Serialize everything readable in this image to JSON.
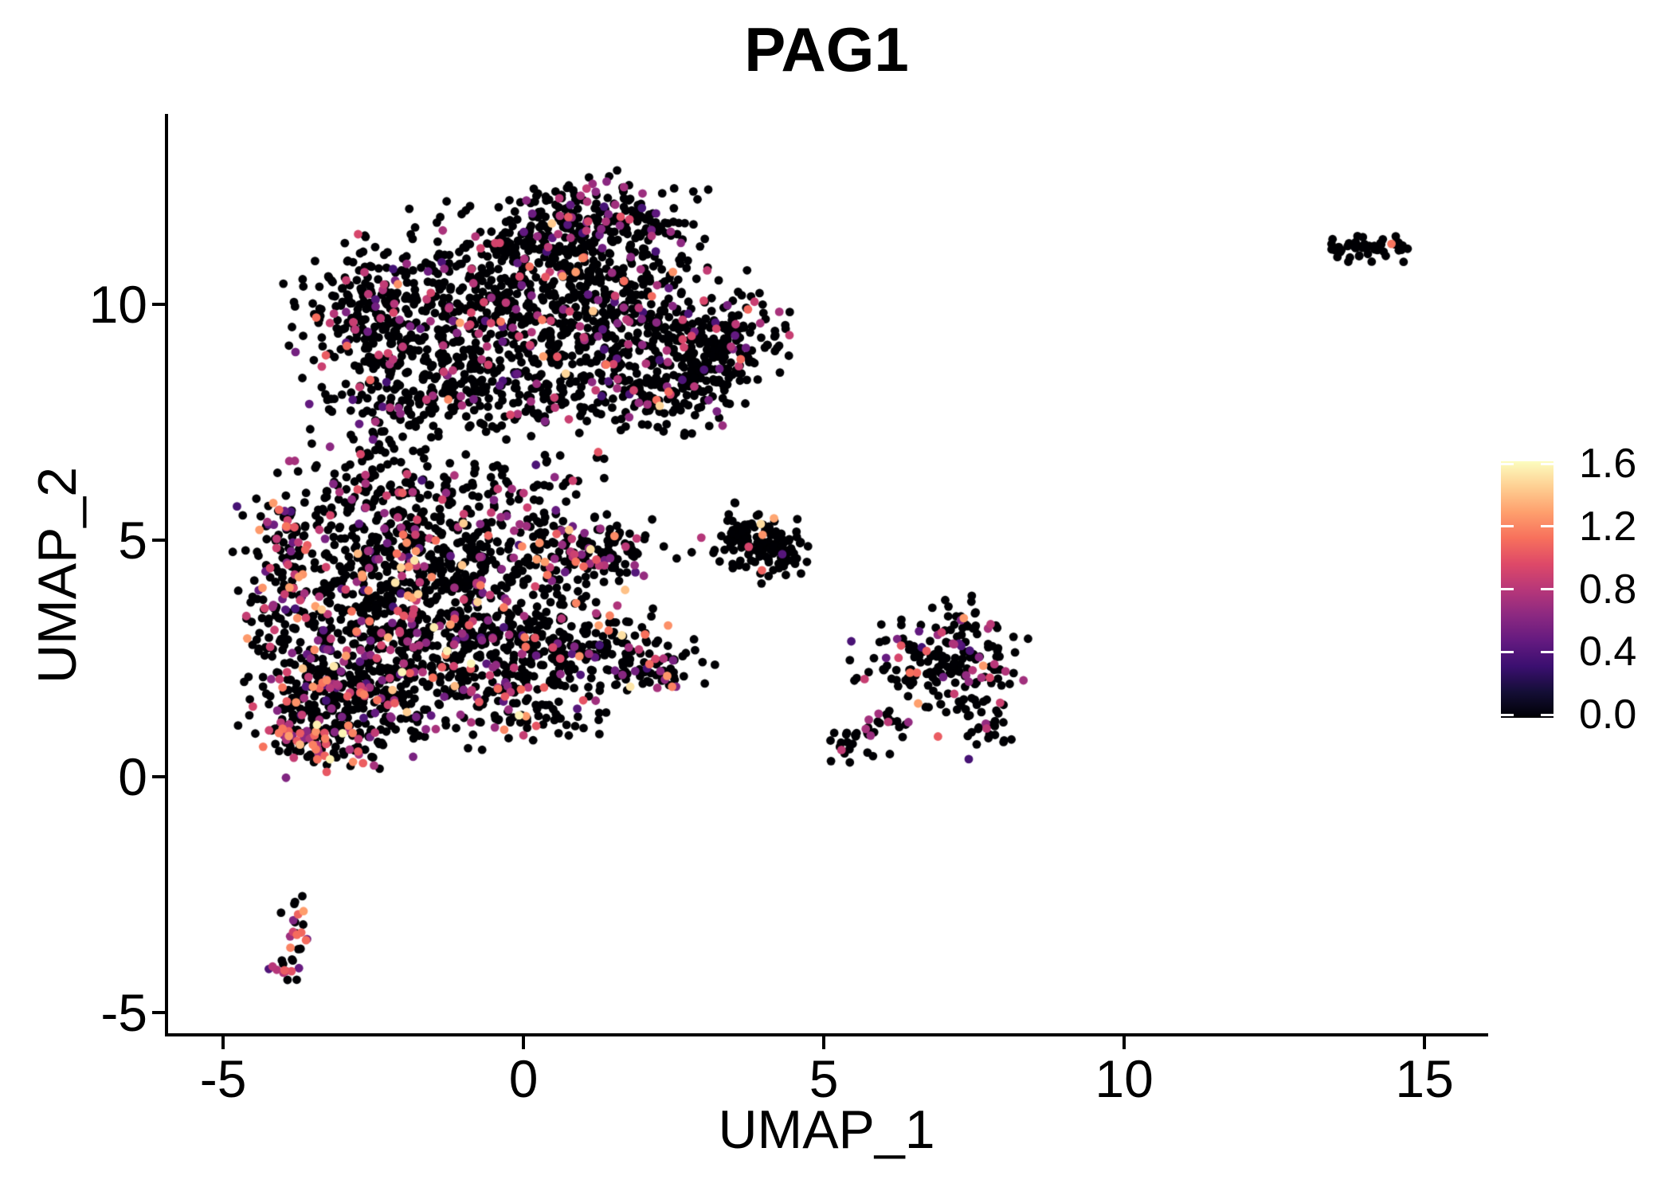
{
  "chart_data": {
    "type": "scatter",
    "title": "PAG1",
    "xlabel": "UMAP_1",
    "ylabel": "UMAP_2",
    "xlim": [
      -5.97,
      16.06
    ],
    "ylim": [
      -5.5,
      14.03
    ],
    "grid": false,
    "legend_position": "right",
    "xtick_values": [
      -5,
      0,
      5,
      10,
      15
    ],
    "xtick_labels": [
      "-5",
      "0",
      "5",
      "10",
      "15"
    ],
    "ytick_values": [
      -5,
      0,
      5,
      10
    ],
    "ytick_labels": [
      "-5",
      "0",
      "5",
      "10"
    ],
    "legend": {
      "tick_values": [
        0.0,
        0.4,
        0.8,
        1.2,
        1.6
      ],
      "tick_labels": [
        "0.0",
        "0.4",
        "0.8",
        "1.2",
        "1.6"
      ],
      "domain": [
        0,
        1.62
      ]
    },
    "colormap": {
      "name": "magma",
      "stops": [
        [
          0.0,
          "#000004"
        ],
        [
          0.1,
          "#140E36"
        ],
        [
          0.2,
          "#3B0F70"
        ],
        [
          0.3,
          "#641A80"
        ],
        [
          0.4,
          "#8C2981"
        ],
        [
          0.5,
          "#B73779"
        ],
        [
          0.6,
          "#DE4968"
        ],
        [
          0.7,
          "#F7705C"
        ],
        [
          0.8,
          "#FE9F6D"
        ],
        [
          0.9,
          "#FECF92"
        ],
        [
          1.0,
          "#FCFDBF"
        ]
      ]
    },
    "point_radius": 5.4,
    "seed": 7,
    "value_bands": [
      [
        0.35,
        0.6
      ],
      [
        0.6,
        0.95
      ],
      [
        1.0,
        1.3
      ],
      [
        1.35,
        1.6
      ]
    ],
    "clusters": [
      {
        "name": "upper-blob",
        "pos_frac": 0.13,
        "weights": [
          0.25,
          0.62,
          0.11,
          0.02
        ],
        "blobs": [
          [
            0.2,
            10.6,
            1.35,
            0.85,
            380
          ],
          [
            1.3,
            11.5,
            0.8,
            0.6,
            180
          ],
          [
            -1.7,
            9.6,
            1.0,
            0.85,
            260
          ],
          [
            -2.7,
            9.9,
            0.55,
            0.55,
            90
          ],
          [
            0.4,
            9.0,
            1.4,
            0.65,
            280
          ],
          [
            2.4,
            9.4,
            0.9,
            0.7,
            200
          ],
          [
            3.5,
            9.2,
            0.42,
            0.5,
            100
          ],
          [
            0.9,
            12.1,
            0.5,
            0.3,
            55
          ],
          [
            -0.7,
            8.0,
            1.0,
            0.45,
            130
          ],
          [
            1.8,
            8.0,
            0.7,
            0.4,
            90
          ],
          [
            -2.4,
            7.9,
            0.45,
            0.45,
            55
          ],
          [
            2.9,
            8.3,
            0.5,
            0.4,
            60
          ]
        ]
      },
      {
        "name": "central-blob",
        "pos_frac": 0.2,
        "weights": [
          0.2,
          0.55,
          0.2,
          0.05
        ],
        "blobs": [
          [
            -2.7,
            4.3,
            1.0,
            0.95,
            300
          ],
          [
            -1.3,
            3.7,
            1.05,
            0.85,
            300
          ],
          [
            -3.3,
            1.8,
            0.75,
            0.8,
            230
          ],
          [
            -2.0,
            1.9,
            0.85,
            0.65,
            210
          ],
          [
            -0.4,
            2.7,
            0.95,
            0.65,
            190
          ],
          [
            0.9,
            2.7,
            0.75,
            0.5,
            130
          ],
          [
            1.9,
            2.5,
            0.45,
            0.35,
            60
          ],
          [
            -0.4,
            4.9,
            0.85,
            0.5,
            110
          ],
          [
            0.8,
            4.7,
            0.6,
            0.4,
            70
          ],
          [
            -2.9,
            6.0,
            0.55,
            0.65,
            90
          ],
          [
            -1.7,
            5.9,
            0.55,
            0.55,
            75
          ],
          [
            -4.0,
            3.5,
            0.28,
            0.85,
            60
          ],
          [
            0.3,
            1.3,
            0.7,
            0.35,
            65
          ],
          [
            0.1,
            6.3,
            0.7,
            0.5,
            45
          ],
          [
            1.5,
            4.8,
            0.4,
            0.35,
            45
          ],
          [
            -4.0,
            5.0,
            0.3,
            0.4,
            40
          ],
          [
            2.7,
            2.4,
            0.3,
            0.3,
            10
          ]
        ]
      },
      {
        "name": "central-bottom-hot",
        "pos_frac": 0.42,
        "weights": [
          0.1,
          0.45,
          0.4,
          0.05
        ],
        "blobs": [
          [
            -3.5,
            0.8,
            0.45,
            0.32,
            70
          ],
          [
            -2.9,
            0.65,
            0.35,
            0.22,
            30
          ],
          [
            -3.9,
            1.4,
            0.2,
            0.3,
            15
          ]
        ]
      },
      {
        "name": "small-mid-cluster",
        "pos_frac": 0.03,
        "weights": [
          0.2,
          0.6,
          0.2,
          0
        ],
        "blobs": [
          [
            3.9,
            5.0,
            0.33,
            0.38,
            75
          ],
          [
            4.25,
            4.7,
            0.25,
            0.3,
            40
          ],
          [
            3.55,
            4.95,
            0.15,
            0.2,
            12
          ]
        ]
      },
      {
        "name": "right-cluster",
        "pos_frac": 0.18,
        "weights": [
          0.25,
          0.6,
          0.13,
          0.02
        ],
        "blobs": [
          [
            7.1,
            2.35,
            0.55,
            0.5,
            90
          ],
          [
            6.3,
            2.5,
            0.45,
            0.35,
            45
          ],
          [
            5.6,
            0.65,
            0.25,
            0.2,
            22
          ],
          [
            6.0,
            1.1,
            0.25,
            0.2,
            18
          ],
          [
            7.75,
            0.9,
            0.2,
            0.3,
            20
          ],
          [
            7.6,
            1.5,
            0.25,
            0.25,
            15
          ],
          [
            7.3,
            3.2,
            0.3,
            0.35,
            25
          ],
          [
            7.9,
            2.4,
            0.25,
            0.25,
            18
          ]
        ]
      },
      {
        "name": "far-right-cluster",
        "pos_frac": 0.02,
        "weights": [
          0.5,
          0.5,
          0,
          0
        ],
        "blobs": [
          [
            14.15,
            11.2,
            0.35,
            0.14,
            40
          ],
          [
            13.6,
            11.05,
            0.12,
            0.1,
            6
          ]
        ]
      },
      {
        "name": "bottom-left-cluster",
        "pos_frac": 0.5,
        "weights": [
          0.15,
          0.55,
          0.3,
          0
        ],
        "blobs": [
          [
            -3.75,
            -3.0,
            0.14,
            0.3,
            10
          ],
          [
            -3.88,
            -3.7,
            0.16,
            0.35,
            12
          ],
          [
            -4.0,
            -4.15,
            0.12,
            0.2,
            8
          ]
        ]
      }
    ],
    "extra_points": [
      [
        14.45,
        11.28,
        1.15
      ],
      [
        3.95,
        5.35,
        1.5
      ],
      [
        4.17,
        5.47,
        1.32
      ],
      [
        3.98,
        5.12,
        1.25
      ],
      [
        2.96,
        5.06,
        0.8
      ],
      [
        -3.7,
        -3.3,
        1.1
      ],
      [
        -3.88,
        -3.62,
        1.2
      ],
      [
        -3.98,
        -4.1,
        1.05
      ],
      [
        -3.45,
        9.72,
        1.12
      ],
      [
        -2.94,
        9.12,
        1.1
      ],
      [
        -3.29,
        8.92,
        1.05
      ],
      [
        6.55,
        2.2,
        1.1
      ],
      [
        6.9,
        0.85,
        1.05
      ],
      [
        6.57,
        1.55,
        1.3
      ],
      [
        6.71,
        2.66,
        1.05
      ],
      [
        0.87,
        4.55,
        1.15
      ],
      [
        1.0,
        4.45,
        1.1
      ],
      [
        1.05,
        12.45,
        0.85
      ],
      [
        1.15,
        12.55,
        0.7
      ],
      [
        0.95,
        12.3,
        0.75
      ],
      [
        -3.95,
        5.3,
        1.15
      ],
      [
        -3.6,
        4.9,
        1.05
      ],
      [
        2.65,
        2.55,
        0
      ],
      [
        4.62,
        4.3,
        0
      ],
      [
        4.55,
        4.62,
        0
      ],
      [
        2.55,
        4.62,
        0
      ],
      [
        2.8,
        4.75,
        0
      ],
      [
        13.55,
        11.0,
        0
      ]
    ]
  }
}
